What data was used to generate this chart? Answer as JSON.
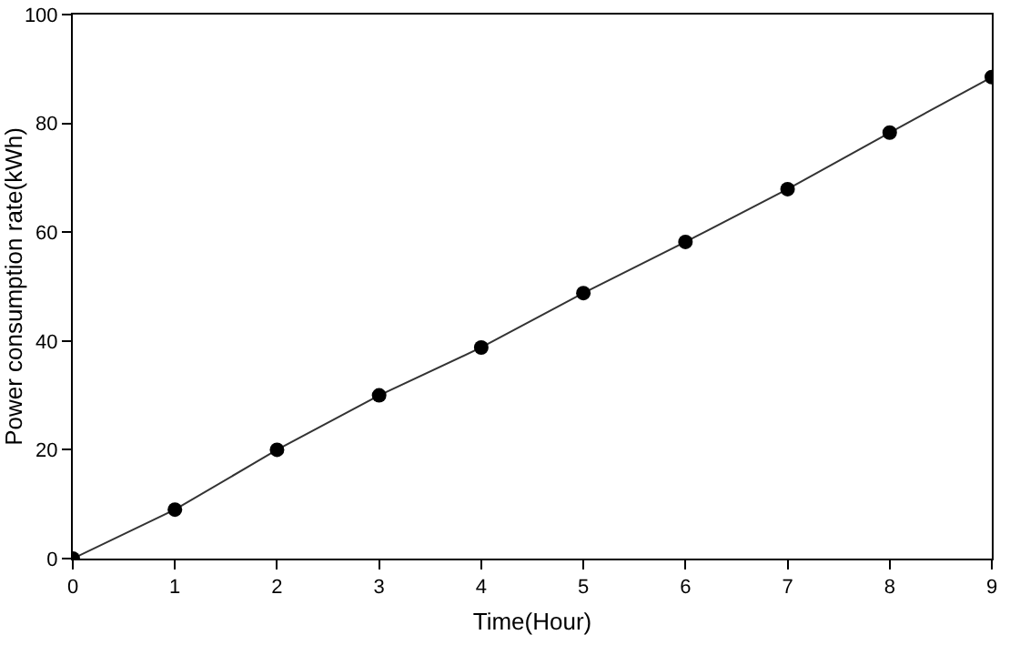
{
  "chart_data": {
    "type": "line",
    "xlabel": "Time(Hour)",
    "ylabel": "Power consumption rate(kWh)",
    "x": [
      0,
      1,
      2,
      3,
      4,
      5,
      6,
      7,
      8,
      9
    ],
    "series": [
      {
        "color": "#000000",
        "values": [
          0,
          9,
          20,
          30,
          38.8,
          48.8,
          58.2,
          67.9,
          78.3,
          88.5
        ]
      }
    ],
    "xlim": [
      0,
      9
    ],
    "xticks": [
      0,
      1,
      2,
      3,
      4,
      5,
      6,
      7,
      8,
      9
    ],
    "ylim": [
      0,
      100
    ],
    "yticks": [
      0,
      20,
      40,
      60,
      80,
      100
    ],
    "marker": "circle",
    "line_style": "solid"
  }
}
